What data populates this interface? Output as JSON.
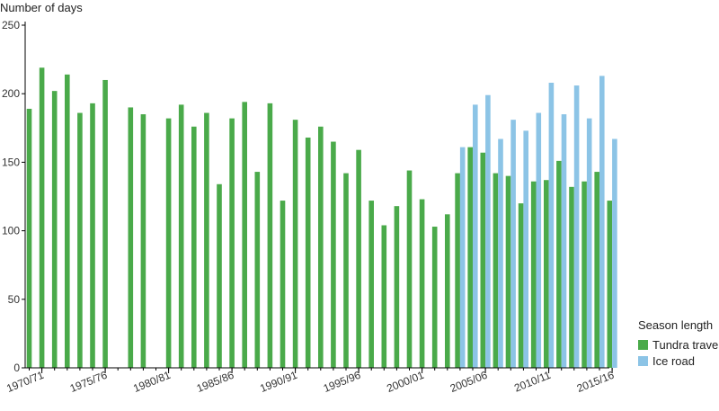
{
  "chart_data": {
    "type": "bar",
    "ylabel": "Number of days",
    "ylim": [
      0,
      250
    ],
    "yticks": [
      0,
      50,
      100,
      150,
      200,
      250
    ],
    "x_labels": [
      {
        "index": 1,
        "label": "1970/71"
      },
      {
        "index": 6,
        "label": "1975/76"
      },
      {
        "index": 11,
        "label": "1980/81"
      },
      {
        "index": 16,
        "label": "1985/86"
      },
      {
        "index": 21,
        "label": "1990/91"
      },
      {
        "index": 26,
        "label": "1995/96"
      },
      {
        "index": 31,
        "label": "2000/01"
      },
      {
        "index": 36,
        "label": "2005/06"
      },
      {
        "index": 41,
        "label": "2010/11"
      },
      {
        "index": 46,
        "label": "2015/16"
      }
    ],
    "legend": {
      "title": "Season length",
      "position": "bottom-right"
    },
    "series": [
      {
        "name": "Tundra travel",
        "color": "#4aaa4a",
        "values": [
          189,
          219,
          202,
          214,
          186,
          193,
          210,
          null,
          190,
          185,
          null,
          182,
          192,
          176,
          186,
          134,
          182,
          194,
          143,
          193,
          122,
          181,
          168,
          176,
          165,
          142,
          159,
          122,
          104,
          118,
          144,
          123,
          103,
          112,
          142,
          161,
          157,
          142,
          140,
          120,
          136,
          137,
          151,
          132,
          136,
          143,
          122
        ]
      },
      {
        "name": "Ice road",
        "color": "#8cc4e6",
        "values": [
          null,
          null,
          null,
          null,
          null,
          null,
          null,
          null,
          null,
          null,
          null,
          null,
          null,
          null,
          null,
          null,
          null,
          null,
          null,
          null,
          null,
          null,
          null,
          null,
          null,
          null,
          null,
          null,
          null,
          null,
          null,
          null,
          null,
          null,
          161,
          192,
          199,
          167,
          181,
          173,
          186,
          208,
          185,
          206,
          182,
          213,
          167
        ]
      }
    ]
  }
}
